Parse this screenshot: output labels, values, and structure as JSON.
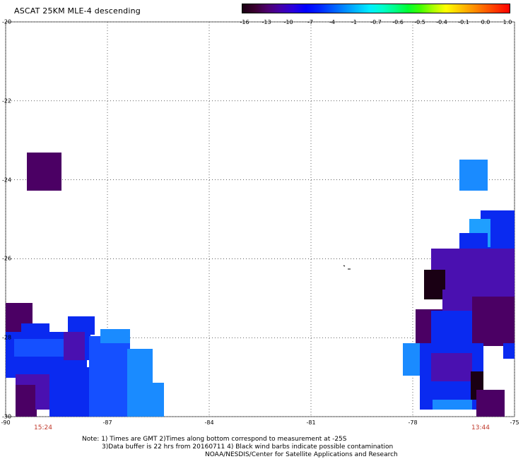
{
  "title": "ASCAT 25KM MLE-4 descending",
  "colorbar": {
    "colors": [
      "#1a0012",
      "#3b0030",
      "#4d0070",
      "#4400aa",
      "#2a00dd",
      "#0000ff",
      "#0022ff",
      "#0055ff",
      "#0088ff",
      "#00bbff",
      "#00eeff",
      "#00ffcc",
      "#00ff88",
      "#00ff33",
      "#44ff00",
      "#aaff00",
      "#ffff00",
      "#ffcc00",
      "#ff9900",
      "#ff6600",
      "#ff3300",
      "#ff0000"
    ],
    "labels": [
      "-16",
      "-13",
      "-10",
      "-7",
      "-4",
      "-1",
      "-0.7",
      "-0.6",
      "-0.5",
      "-0.4",
      "-0.1",
      "0.0",
      "1.0"
    ]
  },
  "axes": {
    "lat_ticks": [
      "-20",
      "-22",
      "-24",
      "-26",
      "-28",
      "-30"
    ],
    "lon_ticks": [
      "-90",
      "-87",
      "-84",
      "-81",
      "-78",
      "-75"
    ],
    "lat_range": [
      -30,
      -20
    ],
    "lon_range": [
      -90,
      -75
    ]
  },
  "times": [
    "15:24",
    "13:44"
  ],
  "notes": [
    "Note: 1) Times are GMT 2)Times along bottom correspond to measurement at -25S",
    "3)Data buffer is 22 hrs from 20160711 4) Black wind barbs indicate possible contamination",
    "NOAA/NESDIS/Center for Satellite Applications and Research"
  ],
  "colors": {
    "deep_purple": "#4b0064",
    "dark": "#1a0014",
    "blue": "#0a2af0",
    "mid_blue": "#1550ff",
    "light_blue": "#1a8bff",
    "sky": "#1f9fff",
    "violet": "#4a10b0",
    "time_red": "#c0392b"
  }
}
